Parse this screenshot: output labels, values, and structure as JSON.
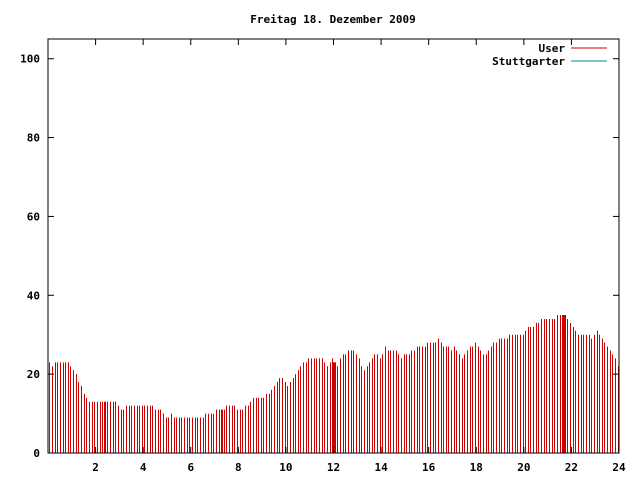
{
  "chart_data": {
    "type": "bar",
    "title": "Freitag 18. Dezember 2009",
    "xlabel": "",
    "ylabel": "",
    "xlim": [
      0,
      24
    ],
    "ylim": [
      0,
      105
    ],
    "x_ticks": [
      "2",
      "4",
      "6",
      "8",
      "10",
      "12",
      "14",
      "16",
      "18",
      "20",
      "22",
      "24"
    ],
    "y_ticks": [
      "0",
      "20",
      "40",
      "60",
      "80",
      "100"
    ],
    "grid": false,
    "legend_position": "top-right",
    "colors": {
      "User": "#cc0000",
      "Stuttgarter": "#008b8b"
    },
    "interval_hours": 0.0833,
    "series": [
      {
        "name": "User",
        "values": [
          23,
          22,
          23,
          23,
          23,
          23,
          23,
          23,
          22,
          21,
          20,
          18,
          17,
          15,
          14,
          13,
          13,
          13,
          13,
          13,
          13,
          13,
          13,
          13,
          13,
          13,
          12,
          11,
          11,
          12,
          12,
          12,
          12,
          12,
          12,
          12,
          12,
          12,
          12,
          12,
          11,
          11,
          11,
          10,
          9,
          9,
          10,
          9,
          9,
          9,
          9,
          9,
          9,
          9,
          9,
          9,
          9,
          9,
          9,
          10,
          10,
          10,
          10,
          11,
          11,
          11,
          11,
          12,
          12,
          12,
          12,
          11,
          11,
          11,
          12,
          12,
          13,
          14,
          14,
          14,
          14,
          14,
          15,
          15,
          16,
          17,
          18,
          19,
          19,
          18,
          17,
          18,
          19,
          20,
          21,
          22,
          23,
          23,
          24,
          24,
          24,
          24,
          24,
          24,
          23,
          22,
          23,
          24,
          23,
          22,
          24,
          25,
          25,
          26,
          26,
          26,
          25,
          24,
          22,
          21,
          22,
          23,
          24,
          25,
          25,
          24,
          25,
          27,
          26,
          26,
          26,
          26,
          25,
          24,
          25,
          25,
          25,
          26,
          26,
          27,
          27,
          27,
          27,
          28,
          28,
          28,
          28,
          29,
          28,
          27,
          27,
          27,
          26,
          27,
          26,
          25,
          24,
          25,
          26,
          27,
          27,
          28,
          27,
          26,
          25,
          25,
          26,
          27,
          28,
          28,
          29,
          29,
          29,
          29,
          30,
          30,
          30,
          30,
          30,
          30,
          31,
          32,
          32,
          32,
          33,
          33,
          34,
          34,
          34,
          34,
          34,
          34,
          35,
          35,
          35,
          35,
          34,
          33,
          32,
          31,
          30,
          30,
          30,
          30,
          30,
          29,
          30,
          31,
          30,
          29,
          28,
          27,
          26,
          25,
          24,
          22
        ]
      },
      {
        "name": "Stuttgarter",
        "values": []
      }
    ],
    "highlight_bars_hours": [
      2.4,
      7.3,
      12.0,
      21.7
    ]
  }
}
